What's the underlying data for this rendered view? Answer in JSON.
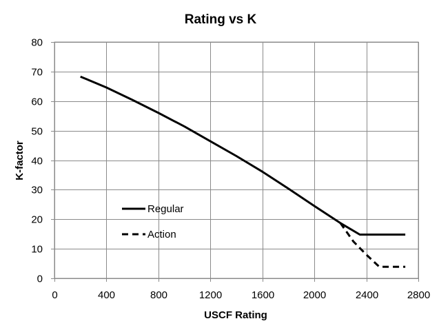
{
  "chart_data": {
    "type": "line",
    "title": "Rating vs K",
    "xlabel": "USCF Rating",
    "ylabel": "K-factor",
    "xlim": [
      0,
      2800
    ],
    "ylim": [
      0,
      80
    ],
    "x_ticks": [
      0,
      400,
      800,
      1200,
      1600,
      2000,
      2400,
      2800
    ],
    "y_ticks": [
      0,
      10,
      20,
      30,
      40,
      50,
      60,
      70,
      80
    ],
    "grid": true,
    "legend_position": "left-inside",
    "series": [
      {
        "name": "Regular",
        "style": "solid",
        "color": "#000000",
        "points": [
          [
            200,
            68.3
          ],
          [
            400,
            64.6
          ],
          [
            600,
            60.4
          ],
          [
            800,
            56.0
          ],
          [
            1000,
            51.4
          ],
          [
            1200,
            46.4
          ],
          [
            1400,
            41.4
          ],
          [
            1600,
            36.1
          ],
          [
            1800,
            30.4
          ],
          [
            2000,
            24.5
          ],
          [
            2200,
            18.7
          ],
          [
            2350,
            14.8
          ],
          [
            2500,
            14.8
          ],
          [
            2700,
            14.8
          ]
        ]
      },
      {
        "name": "Action",
        "style": "dashed",
        "color": "#000000",
        "points": [
          [
            2200,
            18.7
          ],
          [
            2300,
            12.5
          ],
          [
            2400,
            8.0
          ],
          [
            2500,
            3.9
          ],
          [
            2600,
            3.9
          ],
          [
            2700,
            3.9
          ]
        ]
      }
    ]
  }
}
